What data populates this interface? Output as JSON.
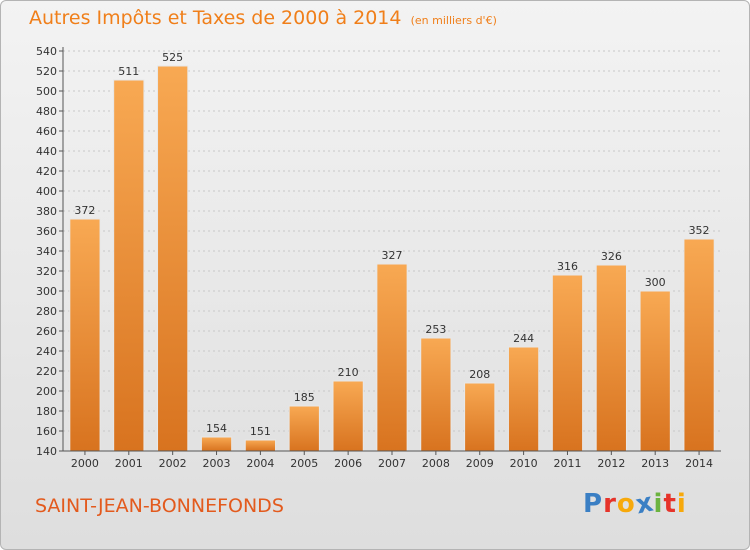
{
  "title": "Autres Impôts et Taxes de 2000 à 2014",
  "subtitle": "(en milliers d'€)",
  "city": "SAINT-JEAN-BONNEFONDS",
  "logo": {
    "text": "Proxiti",
    "colors": [
      "#3a7fc4",
      "#e6332a",
      "#f7a90b",
      "#3a7fc4",
      "#6cb33f",
      "#e6332a",
      "#f7a90b"
    ]
  },
  "colors": {
    "title": "#f07f1a",
    "city": "#e35a1d",
    "bar_light": "#f8a953",
    "bar_dark": "#d8731f"
  },
  "chart_data": {
    "type": "bar",
    "categories": [
      "2000",
      "2001",
      "2002",
      "2003",
      "2004",
      "2005",
      "2006",
      "2007",
      "2008",
      "2009",
      "2010",
      "2011",
      "2012",
      "2013",
      "2014"
    ],
    "values": [
      372,
      511,
      525,
      154,
      151,
      185,
      210,
      327,
      253,
      208,
      244,
      316,
      326,
      300,
      352
    ],
    "ylim": [
      140,
      540
    ],
    "ytick_step": 20,
    "grid": true
  }
}
